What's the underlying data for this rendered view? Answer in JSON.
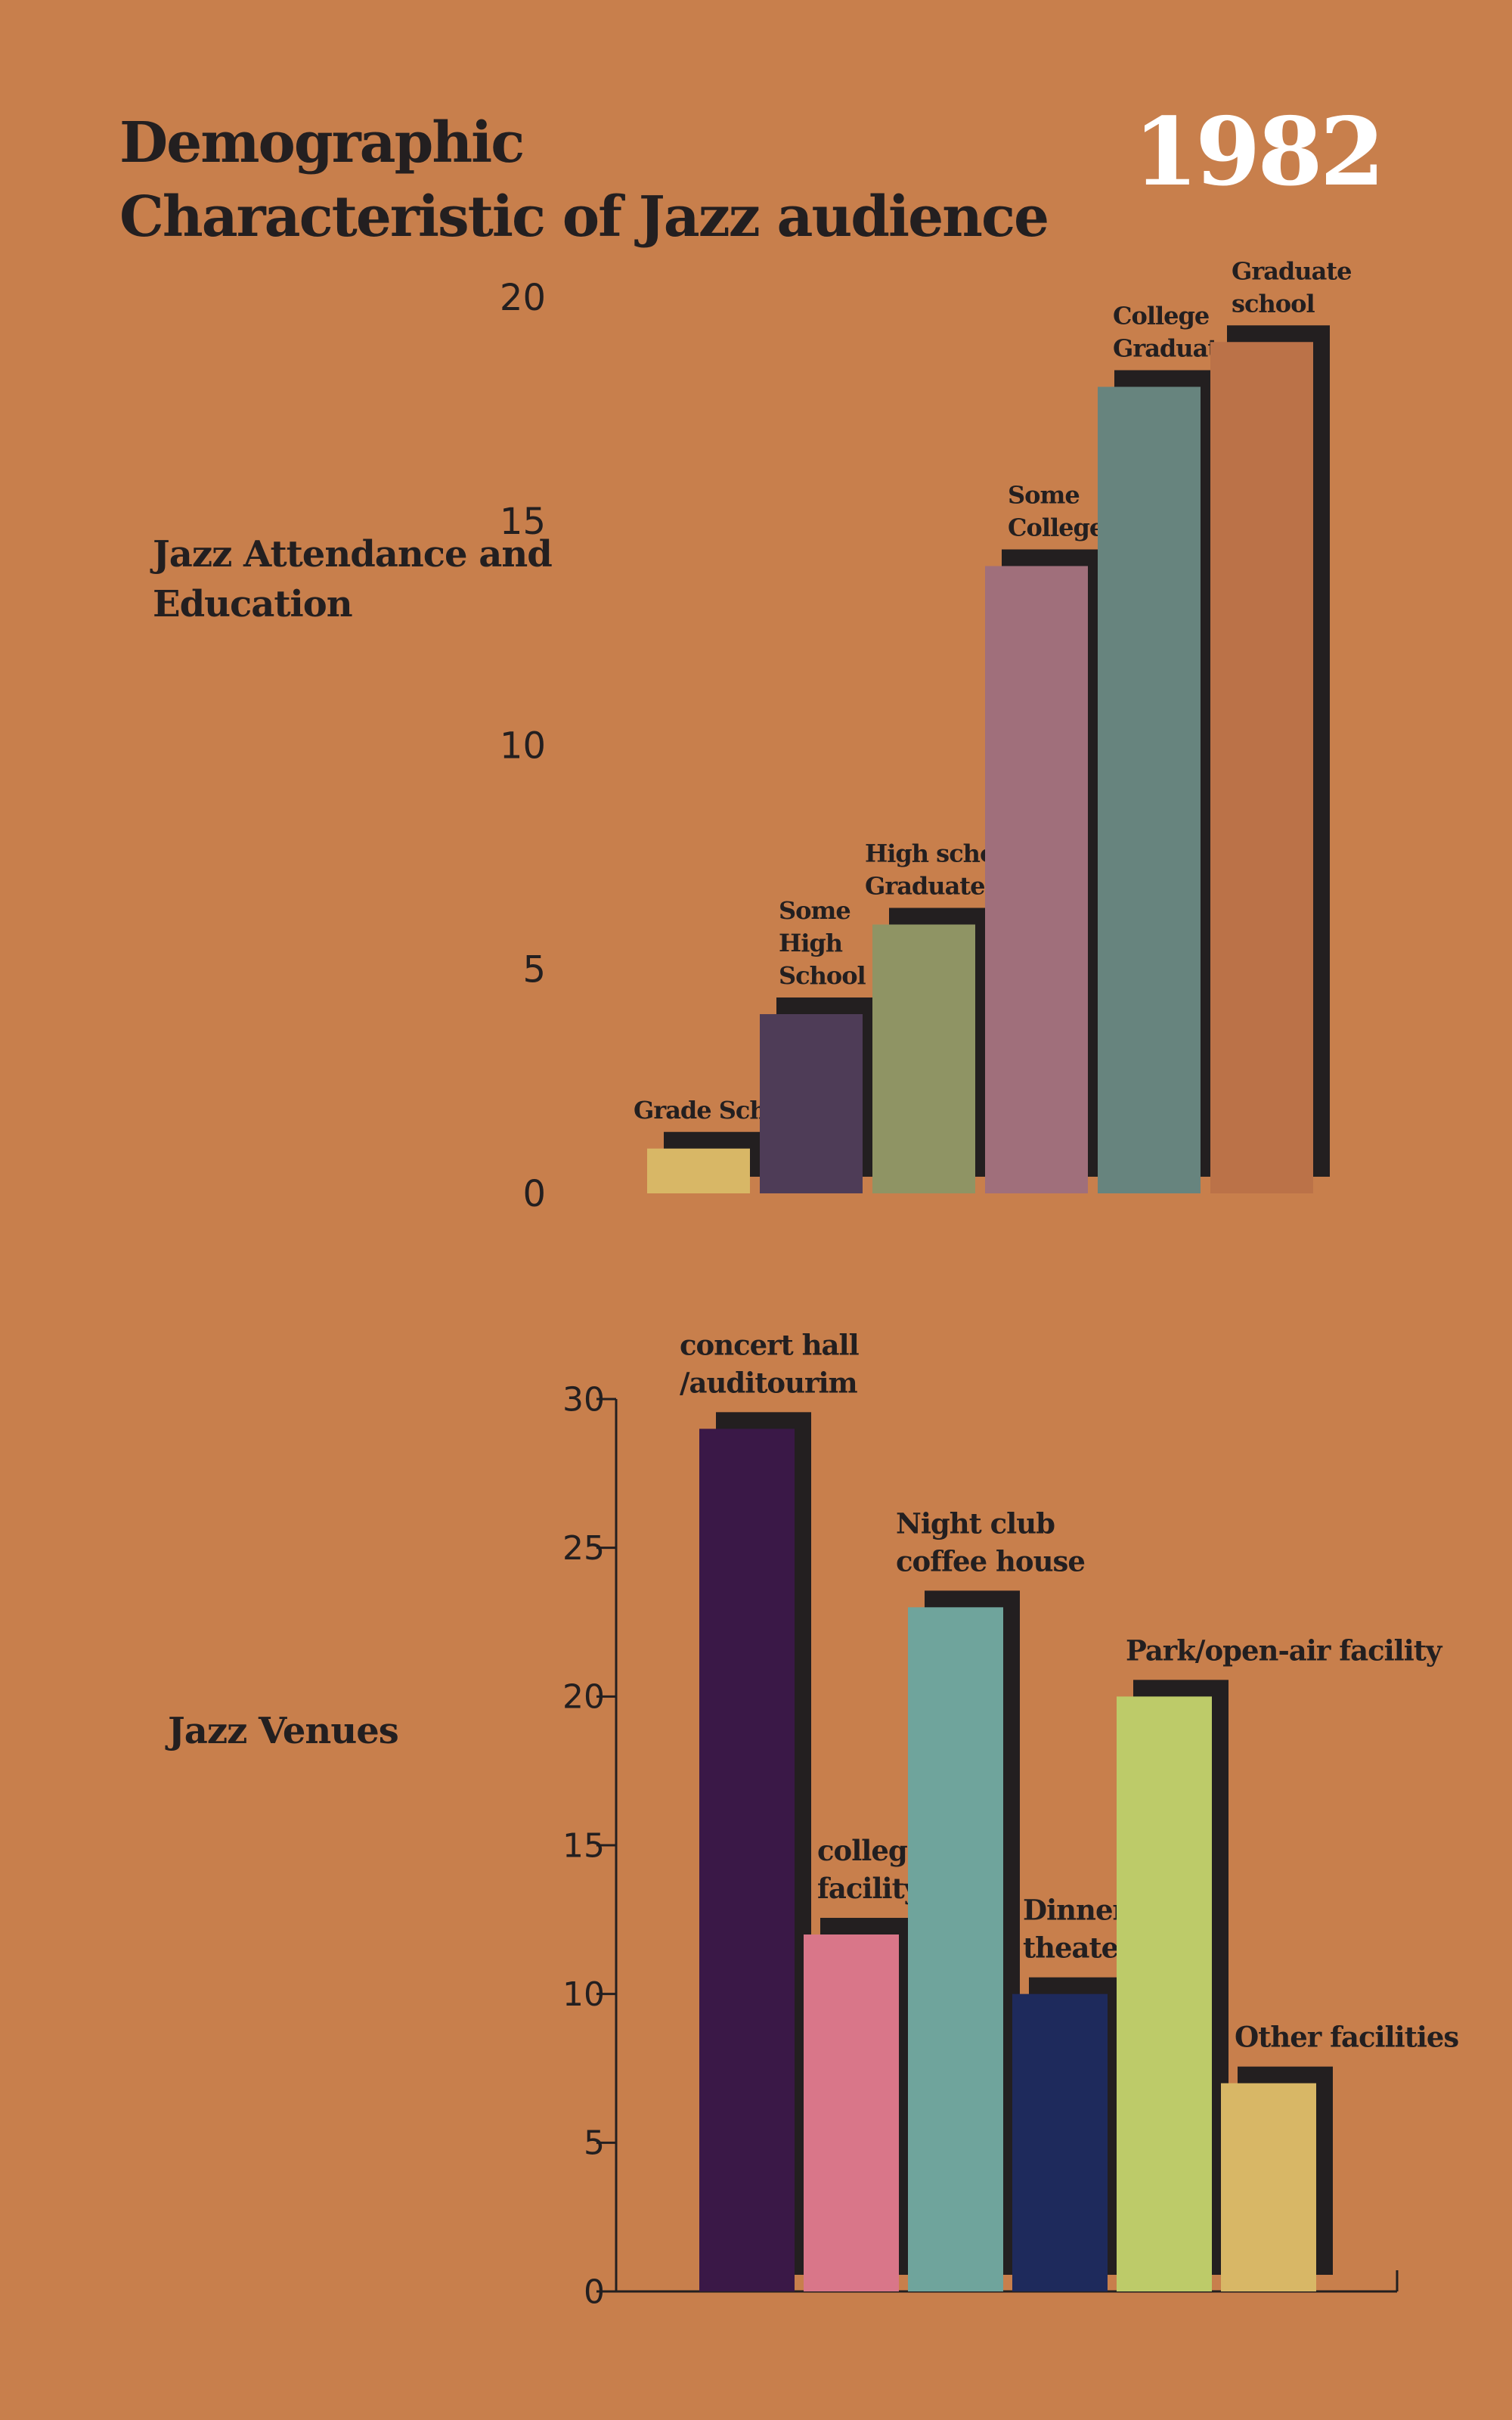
{
  "header": {
    "title_line1": "Demographic",
    "title_line2": "Characteristic of Jazz audience",
    "year": "1982"
  },
  "sections": {
    "education_label_line1": "Jazz Attendance and",
    "education_label_line2": "Education",
    "venues_label": "Jazz Venues"
  },
  "colors": {
    "background": "#C87F4C",
    "shadow": "#231F20",
    "text": "#231F20",
    "year": "#FFFFFF"
  },
  "chart_data": [
    {
      "type": "bar",
      "categories": [
        [
          "Grade School"
        ],
        [
          "Some",
          "High",
          "School"
        ],
        [
          "High school",
          "Graduate"
        ],
        [
          "Some",
          "College"
        ],
        [
          "College",
          "Graduate"
        ],
        [
          "Graduate",
          "school"
        ]
      ],
      "values": [
        1,
        4,
        6,
        14,
        18,
        19
      ],
      "colors": [
        "#D8B766",
        "#4E3C57",
        "#8F9464",
        "#A06F7B",
        "#67847E",
        "#BB7248"
      ],
      "yticks": [
        0,
        5,
        10,
        15,
        20
      ],
      "ylim": [
        0,
        20
      ],
      "axis_lines": false
    },
    {
      "type": "bar",
      "categories": [
        [
          "concert hall",
          "/auditourim"
        ],
        [
          "college",
          "facility"
        ],
        [
          "Night club",
          "coffee house"
        ],
        [
          "Dinner",
          "theater"
        ],
        [
          "Park/open-air facility"
        ],
        [
          "Other facilities"
        ]
      ],
      "values": [
        29,
        12,
        23,
        10,
        20,
        7
      ],
      "colors": [
        "#3A1847",
        "#D97689",
        "#6FA49C",
        "#1E2A5C",
        "#BDCB69",
        "#D8B766"
      ],
      "yticks": [
        0,
        5,
        10,
        15,
        20,
        25,
        30
      ],
      "ylim": [
        0,
        30
      ],
      "axis_lines": true
    }
  ]
}
